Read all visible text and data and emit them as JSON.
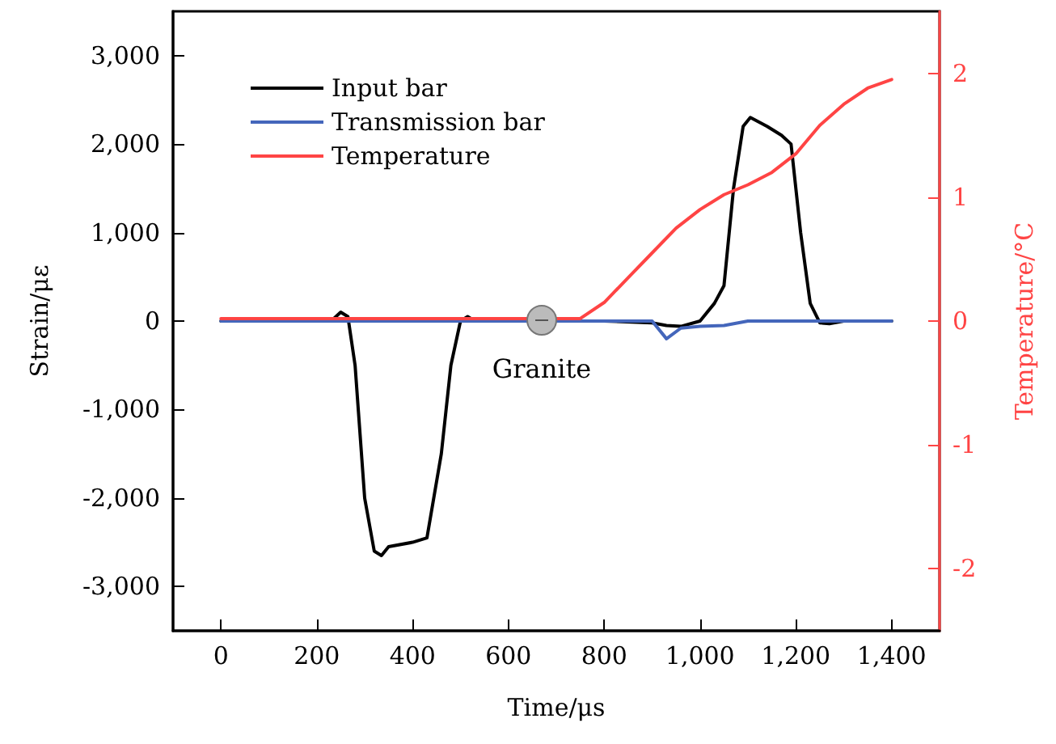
{
  "chart_data": {
    "type": "line",
    "xlabel": "Time/μs",
    "ylabel": "Strain/με",
    "y2label": "Temperature/°C",
    "xlim": [
      -100,
      1500
    ],
    "xticks": [
      0,
      200,
      400,
      600,
      800,
      {
        "value": 1000,
        "label": "1,000"
      },
      {
        "value": 1200,
        "label": "1,200"
      },
      {
        "value": 1400,
        "label": "1,400"
      }
    ],
    "ylim": [
      -3500,
      3500
    ],
    "yticks": [
      {
        "value": -3000,
        "label": "-3,000"
      },
      {
        "value": -2000,
        "label": "-2,000"
      },
      {
        "value": -1000,
        "label": "-1,000"
      },
      0,
      {
        "value": 1000,
        "label": "1,000"
      },
      {
        "value": 2000,
        "label": "2,000"
      },
      {
        "value": 3000,
        "label": "3,000"
      }
    ],
    "y2lim": [
      -2.5,
      2.5
    ],
    "y2ticks": [
      -2,
      -1,
      0,
      1,
      2
    ],
    "grid": false,
    "legend": "top left",
    "marker": "none",
    "line_style": "solid",
    "annotations": [
      "Granite"
    ],
    "series": [
      {
        "name": "Input bar",
        "color": "#000000",
        "x": [
          0,
          230,
          250,
          265,
          280,
          300,
          320,
          335,
          350,
          400,
          430,
          460,
          480,
          500,
          515,
          530,
          800,
          900,
          930,
          960,
          1000,
          1030,
          1050,
          1070,
          1090,
          1105,
          1140,
          1170,
          1190,
          1210,
          1230,
          1250,
          1270,
          1300,
          1400
        ],
        "values": [
          0,
          0,
          100,
          50,
          -500,
          -2000,
          -2600,
          -2650,
          -2550,
          -2500,
          -2450,
          -1500,
          -500,
          0,
          50,
          0,
          0,
          -20,
          -50,
          -60,
          0,
          200,
          400,
          1500,
          2200,
          2300,
          2200,
          2100,
          2000,
          1000,
          200,
          -20,
          -30,
          0,
          0
        ]
      },
      {
        "name": "Transmission bar",
        "color": "#4466bb",
        "x": [
          0,
          900,
          930,
          960,
          1000,
          1050,
          1100,
          1400
        ],
        "values": [
          0,
          0,
          -200,
          -80,
          -60,
          -50,
          0,
          0
        ]
      },
      {
        "name": "Temperature",
        "color": "#ff4444",
        "axis": "y2",
        "x": [
          0,
          750,
          800,
          850,
          900,
          950,
          1000,
          1050,
          1100,
          1150,
          1200,
          1250,
          1300,
          1350,
          1400
        ],
        "values": [
          0.02,
          0.02,
          0.15,
          0.35,
          0.55,
          0.75,
          0.9,
          1.02,
          1.1,
          1.2,
          1.35,
          1.58,
          1.75,
          1.88,
          1.95
        ]
      }
    ]
  }
}
